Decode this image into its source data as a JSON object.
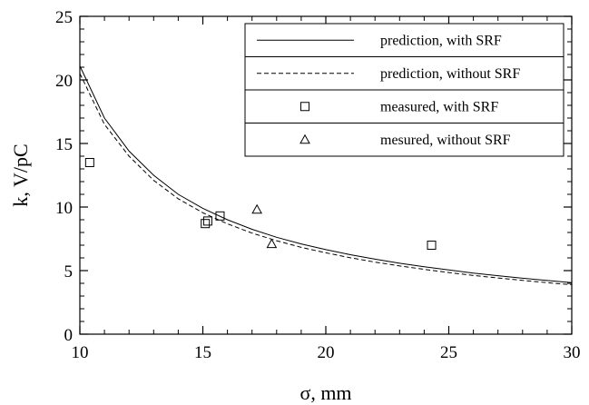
{
  "chart_data": {
    "type": "line",
    "title": "",
    "xlabel": "σ,  mm",
    "ylabel": "k, V/pC",
    "xlim": [
      10,
      30
    ],
    "ylim": [
      0,
      25
    ],
    "x_ticks": [
      10,
      15,
      20,
      25,
      30
    ],
    "y_ticks": [
      0,
      5,
      10,
      15,
      20,
      25
    ],
    "x_minor_step": 1,
    "y_minor_step": 1,
    "grid": false,
    "legend_position": "top-right",
    "series": [
      {
        "name": "prediction, with SRF",
        "kind": "line",
        "style": "solid",
        "x": [
          10,
          11,
          12,
          13,
          14,
          15,
          16,
          17,
          18,
          19,
          20,
          21,
          22,
          23,
          24,
          25,
          26,
          27,
          28,
          29,
          30
        ],
        "y": [
          21.1,
          17.0,
          14.4,
          12.5,
          11.0,
          9.9,
          9.0,
          8.25,
          7.62,
          7.1,
          6.65,
          6.25,
          5.9,
          5.58,
          5.3,
          5.05,
          4.8,
          4.6,
          4.4,
          4.22,
          4.05
        ]
      },
      {
        "name": "prediction, without SRF",
        "kind": "line",
        "style": "dashed",
        "x": [
          10,
          11,
          12,
          13,
          14,
          15,
          16,
          17,
          18,
          19,
          20,
          21,
          22,
          23,
          24,
          25,
          26,
          27,
          28,
          29,
          30
        ],
        "y": [
          20.5,
          16.5,
          14.0,
          12.1,
          10.65,
          9.55,
          8.68,
          7.95,
          7.35,
          6.83,
          6.4,
          6.01,
          5.67,
          5.37,
          5.1,
          4.85,
          4.62,
          4.42,
          4.23,
          4.05,
          3.89
        ]
      },
      {
        "name": "measured, with SRF",
        "kind": "scatter",
        "marker": "square",
        "x": [
          10.4,
          15.1,
          15.2,
          15.7,
          24.3
        ],
        "y": [
          13.5,
          8.7,
          8.9,
          9.3,
          7.0
        ]
      },
      {
        "name": "mesured, without SRF",
        "kind": "scatter",
        "marker": "triangle",
        "x": [
          17.2,
          17.8
        ],
        "y": [
          9.8,
          7.1
        ]
      }
    ]
  }
}
